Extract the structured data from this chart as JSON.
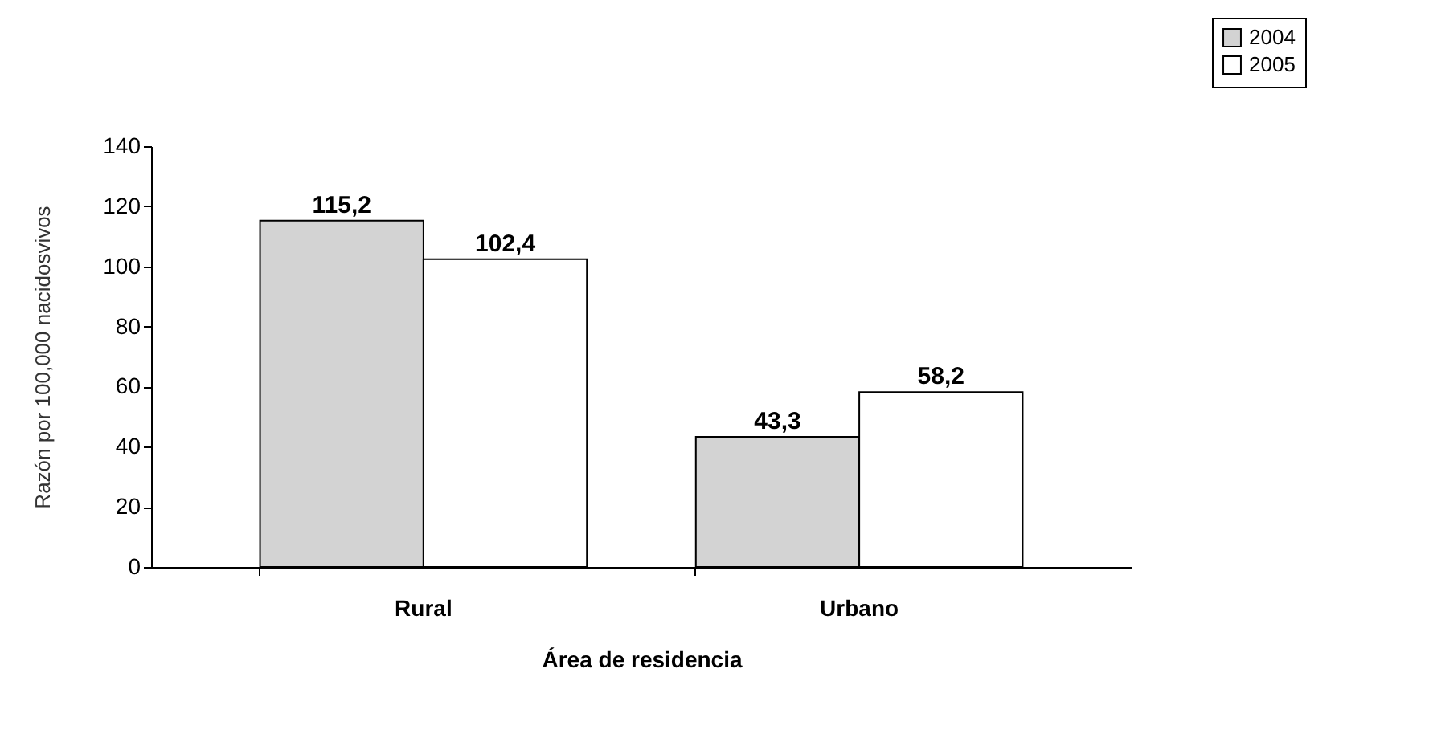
{
  "chart_data": {
    "type": "bar",
    "xlabel": "Área de residencia",
    "ylabel": "Razón por 100,000 nacidosvivos",
    "categories": [
      "Rural",
      "Urbano"
    ],
    "series": [
      {
        "name": "2004",
        "color": "#d3d3d3",
        "values": [
          115.2,
          43.3
        ],
        "value_labels": [
          "115,2",
          "43,3"
        ]
      },
      {
        "name": "2005",
        "color": "#ffffff",
        "values": [
          102.4,
          58.2
        ],
        "value_labels": [
          "102,4",
          "58,2"
        ]
      }
    ],
    "ylim": [
      0,
      140
    ],
    "yticks": [
      0,
      20,
      40,
      60,
      80,
      100,
      120,
      140
    ],
    "grid": false,
    "legend": "top right"
  }
}
